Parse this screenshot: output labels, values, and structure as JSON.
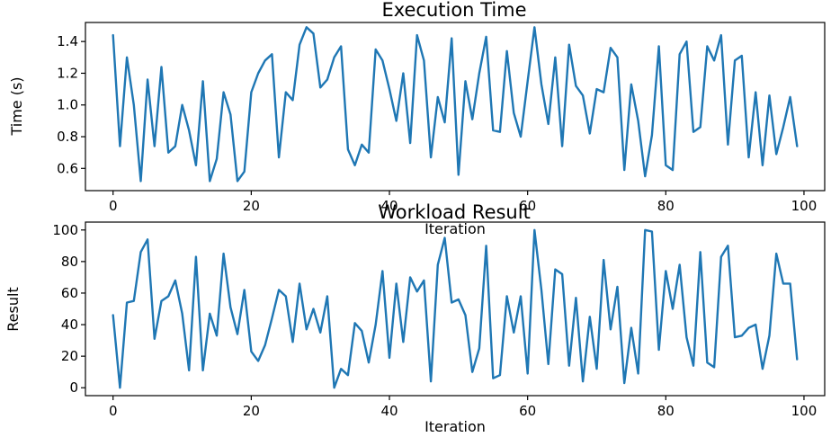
{
  "colors": {
    "line": "#1f77b4"
  },
  "chart_data": [
    {
      "type": "line",
      "title": "Execution Time",
      "xlabel": "Iteration",
      "ylabel": "Time (s)",
      "xlim": [
        -4,
        103
      ],
      "ylim": [
        0.46,
        1.52
      ],
      "xticks": [
        0,
        20,
        40,
        60,
        80,
        100
      ],
      "yticks": [
        0.6,
        0.8,
        1.0,
        1.2,
        1.4
      ],
      "ytick_labels": [
        "0.6",
        "0.8",
        "1.0",
        "1.2",
        "1.4"
      ],
      "grid": false,
      "x": [
        0,
        1,
        2,
        3,
        4,
        5,
        6,
        7,
        8,
        9,
        10,
        11,
        12,
        13,
        14,
        15,
        16,
        17,
        18,
        19,
        20,
        21,
        22,
        23,
        24,
        25,
        26,
        27,
        28,
        29,
        30,
        31,
        32,
        33,
        34,
        35,
        36,
        37,
        38,
        39,
        40,
        41,
        42,
        43,
        44,
        45,
        46,
        47,
        48,
        49,
        50,
        51,
        52,
        53,
        54,
        55,
        56,
        57,
        58,
        59,
        60,
        61,
        62,
        63,
        64,
        65,
        66,
        67,
        68,
        69,
        70,
        71,
        72,
        73,
        74,
        75,
        76,
        77,
        78,
        79,
        80,
        81,
        82,
        83,
        84,
        85,
        86,
        87,
        88,
        89,
        90,
        91,
        92,
        93,
        94,
        95,
        96,
        97,
        98,
        99
      ],
      "series": [
        {
          "values": [
            1.44,
            0.74,
            1.3,
            1.0,
            0.52,
            1.16,
            0.74,
            1.24,
            0.7,
            0.74,
            1.0,
            0.84,
            0.62,
            1.15,
            0.52,
            0.66,
            1.08,
            0.94,
            0.52,
            0.58,
            1.08,
            1.2,
            1.28,
            1.32,
            0.67,
            1.08,
            1.03,
            1.38,
            1.49,
            1.45,
            1.11,
            1.16,
            1.3,
            1.37,
            0.72,
            0.62,
            0.75,
            0.7,
            1.35,
            1.28,
            1.1,
            0.9,
            1.2,
            0.76,
            1.44,
            1.28,
            0.67,
            1.05,
            0.89,
            1.42,
            0.56,
            1.15,
            0.91,
            1.2,
            1.43,
            0.84,
            0.83,
            1.34,
            0.95,
            0.8,
            1.15,
            1.49,
            1.13,
            0.88,
            1.3,
            0.74,
            1.38,
            1.12,
            1.06,
            0.82,
            1.1,
            1.08,
            1.36,
            1.3,
            0.59,
            1.13,
            0.9,
            0.55,
            0.81,
            1.37,
            0.62,
            0.59,
            1.32,
            1.4,
            0.83,
            0.86,
            1.37,
            1.28,
            1.44,
            0.75,
            1.28,
            1.31,
            0.67,
            1.08,
            0.62,
            1.06,
            0.69,
            0.86,
            1.05,
            0.74
          ]
        }
      ]
    },
    {
      "type": "line",
      "title": "Workload Result",
      "xlabel": "Iteration",
      "ylabel": "Result",
      "xlim": [
        -4,
        103
      ],
      "ylim": [
        -5,
        105
      ],
      "xticks": [
        0,
        20,
        40,
        60,
        80,
        100
      ],
      "yticks": [
        0,
        20,
        40,
        60,
        80,
        100
      ],
      "ytick_labels": [
        "0",
        "20",
        "40",
        "60",
        "80",
        "100"
      ],
      "grid": false,
      "x": [
        0,
        1,
        2,
        3,
        4,
        5,
        6,
        7,
        8,
        9,
        10,
        11,
        12,
        13,
        14,
        15,
        16,
        17,
        18,
        19,
        20,
        21,
        22,
        23,
        24,
        25,
        26,
        27,
        28,
        29,
        30,
        31,
        32,
        33,
        34,
        35,
        36,
        37,
        38,
        39,
        40,
        41,
        42,
        43,
        44,
        45,
        46,
        47,
        48,
        49,
        50,
        51,
        52,
        53,
        54,
        55,
        56,
        57,
        58,
        59,
        60,
        61,
        62,
        63,
        64,
        65,
        66,
        67,
        68,
        69,
        70,
        71,
        72,
        73,
        74,
        75,
        76,
        77,
        78,
        79,
        80,
        81,
        82,
        83,
        84,
        85,
        86,
        87,
        88,
        89,
        90,
        91,
        92,
        93,
        94,
        95,
        96,
        97,
        98,
        99
      ],
      "series": [
        {
          "values": [
            46,
            0,
            54,
            55,
            86,
            94,
            31,
            55,
            58,
            68,
            47,
            11,
            83,
            11,
            47,
            33,
            85,
            51,
            34,
            62,
            23,
            17,
            27,
            44,
            62,
            58,
            29,
            66,
            37,
            50,
            35,
            58,
            0,
            12,
            8,
            41,
            36,
            16,
            40,
            74,
            19,
            66,
            29,
            70,
            61,
            68,
            4,
            78,
            95,
            54,
            56,
            46,
            10,
            25,
            90,
            6,
            8,
            58,
            35,
            58,
            9,
            100,
            62,
            15,
            75,
            72,
            14,
            57,
            4,
            45,
            12,
            81,
            37,
            64,
            3,
            38,
            9,
            100,
            99,
            24,
            74,
            50,
            78,
            32,
            14,
            86,
            16,
            13,
            83,
            90,
            32,
            33,
            38,
            40,
            12,
            33,
            85,
            66,
            66,
            18
          ]
        }
      ]
    }
  ]
}
